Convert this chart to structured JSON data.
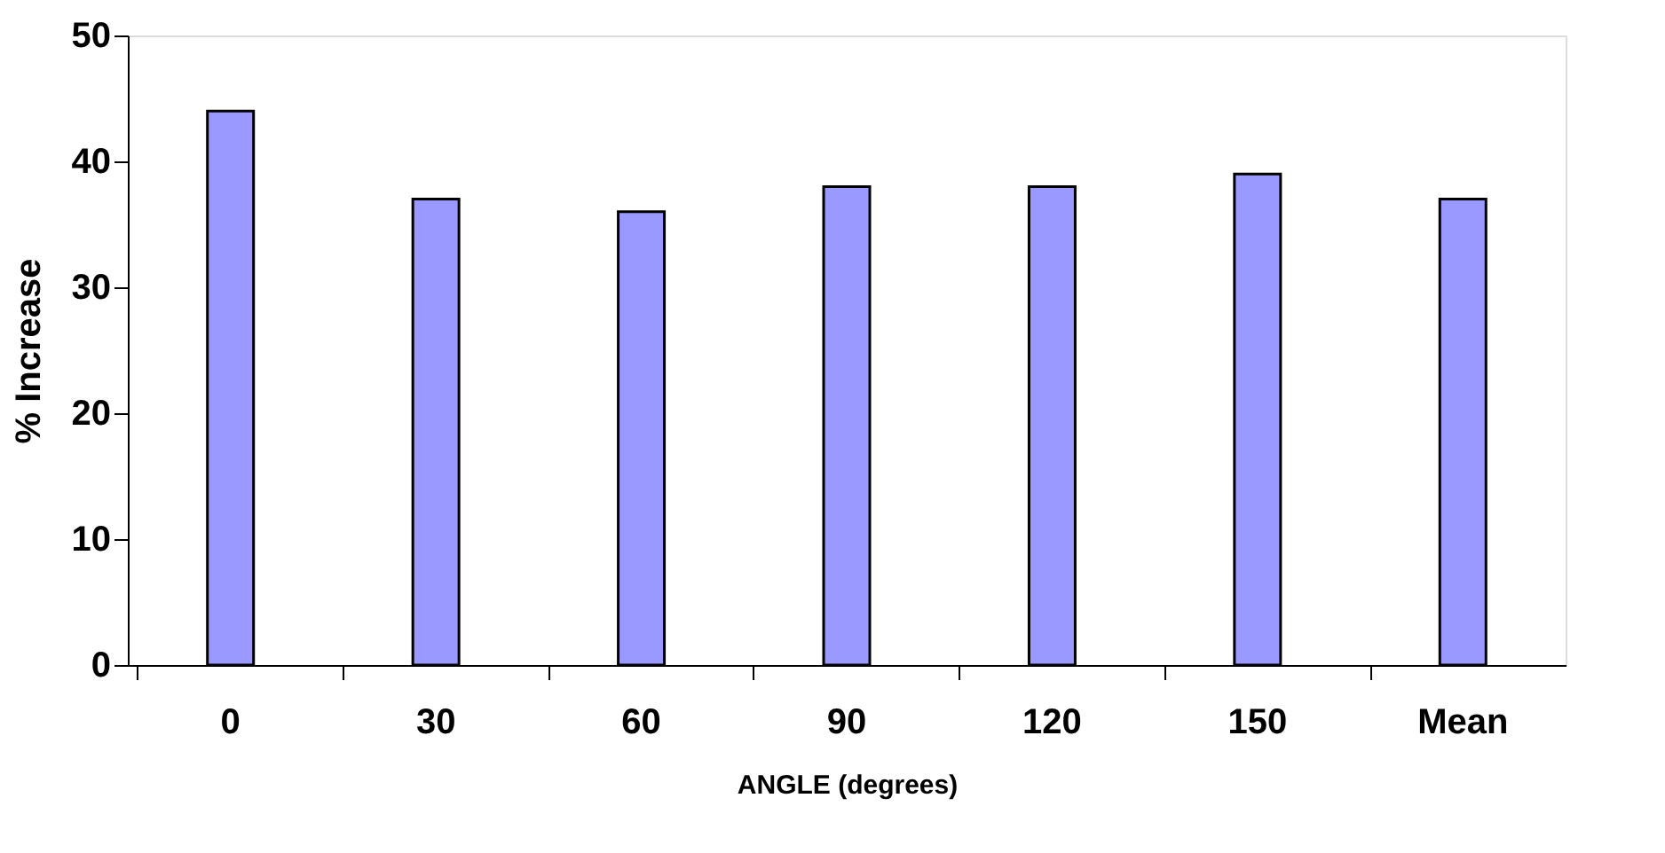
{
  "chart_data": {
    "type": "bar",
    "xlabel": "ANGLE (degrees)",
    "ylabel": "% Increase",
    "categories": [
      "0",
      "30",
      "60",
      "90",
      "120",
      "150",
      "Mean"
    ],
    "values": [
      44,
      37,
      36,
      38,
      38,
      39,
      37
    ],
    "color": "#9999ff",
    "ylim": [
      0,
      50
    ],
    "yticks": [
      0,
      10,
      20,
      30,
      40,
      50
    ],
    "grid": false
  }
}
